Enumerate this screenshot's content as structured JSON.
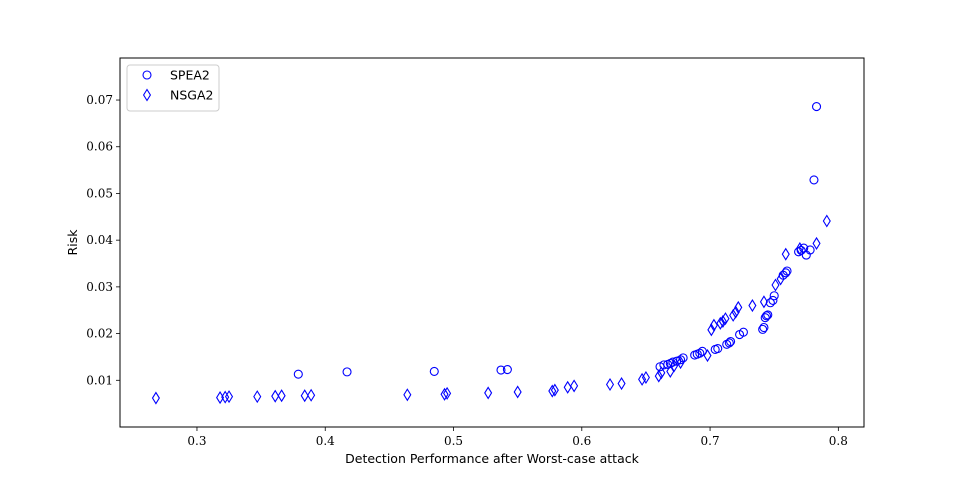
{
  "chart_data": {
    "type": "scatter",
    "xlabel": "Detection Performance after Worst-case attack",
    "ylabel": "Risk",
    "xlim": [
      0.24,
      0.82
    ],
    "ylim": [
      0.0,
      0.079
    ],
    "xticks": [
      0.3,
      0.4,
      0.5,
      0.6,
      0.7,
      0.8
    ],
    "xtick_labels": [
      "0.3",
      "0.4",
      "0.5",
      "0.6",
      "0.7",
      "0.8"
    ],
    "yticks": [
      0.01,
      0.02,
      0.03,
      0.04,
      0.05,
      0.06,
      0.07
    ],
    "ytick_labels": [
      "0.01",
      "0.02",
      "0.03",
      "0.04",
      "0.05",
      "0.06",
      "0.07"
    ],
    "grid": false,
    "legend_position": "top-left",
    "color": "#0000ff",
    "series": [
      {
        "name": "SPEA2",
        "marker": "circle",
        "points": [
          [
            0.379,
            0.0113
          ],
          [
            0.417,
            0.0118
          ],
          [
            0.485,
            0.0119
          ],
          [
            0.537,
            0.0122
          ],
          [
            0.542,
            0.0123
          ],
          [
            0.661,
            0.0129
          ],
          [
            0.664,
            0.0133
          ],
          [
            0.667,
            0.0134
          ],
          [
            0.669,
            0.0136
          ],
          [
            0.671,
            0.0139
          ],
          [
            0.674,
            0.0141
          ],
          [
            0.677,
            0.0144
          ],
          [
            0.679,
            0.0148
          ],
          [
            0.688,
            0.0154
          ],
          [
            0.69,
            0.0156
          ],
          [
            0.692,
            0.0158
          ],
          [
            0.694,
            0.0162
          ],
          [
            0.704,
            0.0166
          ],
          [
            0.706,
            0.0168
          ],
          [
            0.713,
            0.0177
          ],
          [
            0.715,
            0.018
          ],
          [
            0.716,
            0.0183
          ],
          [
            0.723,
            0.0198
          ],
          [
            0.726,
            0.0203
          ],
          [
            0.741,
            0.0209
          ],
          [
            0.742,
            0.0213
          ],
          [
            0.743,
            0.0234
          ],
          [
            0.744,
            0.0238
          ],
          [
            0.745,
            0.024
          ],
          [
            0.747,
            0.0266
          ],
          [
            0.749,
            0.0271
          ],
          [
            0.75,
            0.0281
          ],
          [
            0.757,
            0.0325
          ],
          [
            0.759,
            0.033
          ],
          [
            0.76,
            0.0334
          ],
          [
            0.769,
            0.0375
          ],
          [
            0.771,
            0.0378
          ],
          [
            0.773,
            0.0383
          ],
          [
            0.775,
            0.0368
          ],
          [
            0.778,
            0.0379
          ],
          [
            0.781,
            0.0529
          ],
          [
            0.783,
            0.0686
          ]
        ]
      },
      {
        "name": "NSGA2",
        "marker": "diamond",
        "points": [
          [
            0.268,
            0.0062
          ],
          [
            0.318,
            0.0063
          ],
          [
            0.322,
            0.0064
          ],
          [
            0.325,
            0.0065
          ],
          [
            0.347,
            0.0065
          ],
          [
            0.361,
            0.0066
          ],
          [
            0.366,
            0.0067
          ],
          [
            0.384,
            0.0067
          ],
          [
            0.389,
            0.0068
          ],
          [
            0.464,
            0.0069
          ],
          [
            0.493,
            0.007
          ],
          [
            0.495,
            0.0072
          ],
          [
            0.527,
            0.0073
          ],
          [
            0.55,
            0.0075
          ],
          [
            0.577,
            0.0077
          ],
          [
            0.579,
            0.0079
          ],
          [
            0.589,
            0.0085
          ],
          [
            0.594,
            0.0088
          ],
          [
            0.622,
            0.0091
          ],
          [
            0.631,
            0.0093
          ],
          [
            0.647,
            0.0102
          ],
          [
            0.65,
            0.0106
          ],
          [
            0.66,
            0.0109
          ],
          [
            0.662,
            0.0116
          ],
          [
            0.669,
            0.0119
          ],
          [
            0.672,
            0.0131
          ],
          [
            0.677,
            0.0138
          ],
          [
            0.698,
            0.0153
          ],
          [
            0.701,
            0.0208
          ],
          [
            0.703,
            0.0218
          ],
          [
            0.708,
            0.0222
          ],
          [
            0.71,
            0.0226
          ],
          [
            0.712,
            0.0232
          ],
          [
            0.718,
            0.0239
          ],
          [
            0.72,
            0.0246
          ],
          [
            0.722,
            0.0256
          ],
          [
            0.733,
            0.026
          ],
          [
            0.742,
            0.0268
          ],
          [
            0.751,
            0.0304
          ],
          [
            0.755,
            0.0317
          ],
          [
            0.759,
            0.037
          ],
          [
            0.77,
            0.0382
          ],
          [
            0.783,
            0.0393
          ],
          [
            0.791,
            0.0441
          ]
        ]
      }
    ]
  }
}
